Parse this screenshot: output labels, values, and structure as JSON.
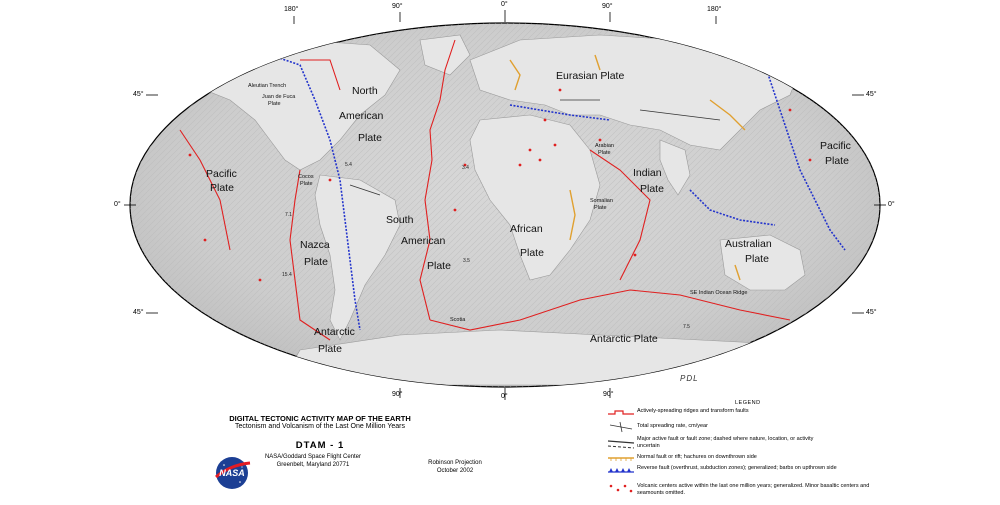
{
  "graticule": {
    "top_labels": [
      "180°",
      "90°",
      "0°",
      "90°",
      "180°"
    ],
    "bottom_labels": [
      "90°",
      "0°",
      "90°"
    ],
    "left_labels": [
      "45°",
      "0°",
      "45°"
    ],
    "right_labels": [
      "45°",
      "0°",
      "45°"
    ]
  },
  "plates": {
    "eurasian": "Eurasian Plate",
    "north_american_1": "North",
    "north_american_2": "American",
    "north_american_3": "Plate",
    "pacific_west_1": "Pacific",
    "pacific_west_2": "Plate",
    "pacific_east_1": "Pacific",
    "pacific_east_2": "Plate",
    "south_american_1": "South",
    "south_american_2": "American",
    "south_american_3": "Plate",
    "nazca_1": "Nazca",
    "nazca_2": "Plate",
    "african_1": "African",
    "african_2": "Plate",
    "indian_1": "Indian",
    "indian_2": "Plate",
    "australian_1": "Australian",
    "australian_2": "Plate",
    "antarctic_west_1": "Antarctic",
    "antarctic_west_2": "Plate",
    "antarctic_east": "Antarctic Plate",
    "juan_de_fuca_1": "Juan de Fuca",
    "juan_de_fuca_2": "Plate",
    "aleutian": "Aleutian Trench",
    "cocos_1": "Cocos",
    "cocos_2": "Plate",
    "arabian_1": "Arabian",
    "arabian_2": "Plate",
    "somalian_1": "Somalian",
    "somalian_2": "Plate",
    "scotia": "Scotia",
    "se_indian_ridge": "SE Indian Ocean Ridge"
  },
  "spreading_rates": [
    "5.4",
    "3.4",
    "7.1",
    "15.4",
    "3.5",
    "7.5"
  ],
  "signature": "PDL",
  "title": {
    "main": "DIGITAL TECTONIC ACTIVITY MAP OF THE EARTH",
    "sub": "Tectonism and Volcanism of the Last One Million Years",
    "code": "DTAM - 1"
  },
  "logo_text": "NASA",
  "center": {
    "line1": "NASA/Goddard Space Flight Center",
    "line2": "Greenbelt, Maryland 20771"
  },
  "projection": {
    "line1": "Robinson Projection",
    "line2": "October 2002"
  },
  "legend": {
    "title": "LEGEND",
    "items": [
      {
        "text": "Actively-spreading ridges and transform faults"
      },
      {
        "text": "Total spreading rate, cm/year"
      },
      {
        "text": "Major active fault or fault zone; dashed where nature, location, or activity uncertain"
      },
      {
        "text": "Normal fault or rift; hachures on downthrown side"
      },
      {
        "text": "Reverse fault (overthrust, subduction zones); generalized; barbs on upthrown side"
      },
      {
        "text": "Volcanic centers active within the last one million years; generalized.  Minor basaltic centers and seamounts omitted."
      }
    ]
  },
  "colors": {
    "ridge": "#e02020",
    "subduction": "#2233cc",
    "normal_fault": "#e0a030",
    "major_fault": "#333333",
    "volcano": "#e02020",
    "map_fill": "#d4d4d4"
  }
}
